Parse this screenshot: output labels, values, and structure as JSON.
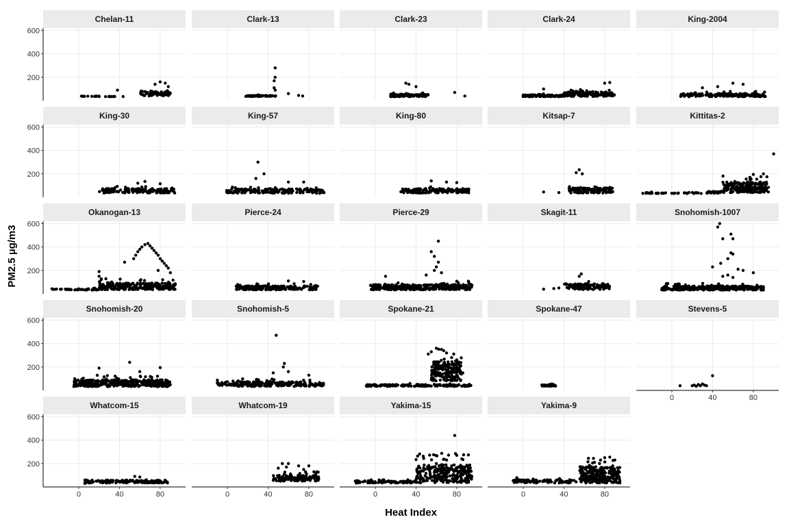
{
  "chart_data": {
    "type": "scatter",
    "layout": "facet-wrap",
    "xlabel": "Heat Index",
    "ylabel": "PM2.5 µg/m3",
    "xlim": [
      -35,
      105
    ],
    "ylim": [
      0,
      620
    ],
    "x_ticks": [
      0,
      40,
      80
    ],
    "y_ticks": [
      200,
      400,
      600
    ],
    "grid": true,
    "point_color": "#000000",
    "strip_color": "#ebebeb",
    "grid_color": "#ebebeb",
    "panels": [
      {
        "label": "Chelan-11",
        "clusters": [
          [
            -1,
            20,
            36,
            42,
            16,
            4
          ],
          [
            20,
            45,
            34,
            40,
            10,
            2
          ],
          [
            60,
            90,
            40,
            110,
            70,
            8
          ]
        ],
        "points": [
          [
            38,
            90
          ],
          [
            80,
            160
          ],
          [
            85,
            150
          ],
          [
            75,
            140
          ],
          [
            88,
            120
          ]
        ]
      },
      {
        "label": "Clark-13",
        "clusters": [
          [
            18,
            48,
            36,
            50,
            60,
            6
          ]
        ],
        "points": [
          [
            47,
            280
          ],
          [
            47,
            200
          ],
          [
            46,
            170
          ],
          [
            46,
            110
          ],
          [
            47,
            90
          ],
          [
            60,
            60
          ],
          [
            70,
            45
          ],
          [
            74,
            40
          ]
        ]
      },
      {
        "label": "Clark-23",
        "clusters": [
          [
            15,
            52,
            34,
            70,
            110,
            9
          ]
        ],
        "points": [
          [
            30,
            150
          ],
          [
            33,
            140
          ],
          [
            40,
            120
          ],
          [
            78,
            70
          ],
          [
            88,
            40
          ]
        ]
      },
      {
        "label": "Clark-24",
        "clusters": [
          [
            -1,
            40,
            34,
            60,
            120,
            6
          ],
          [
            40,
            90,
            36,
            100,
            150,
            9
          ]
        ],
        "points": [
          [
            85,
            155
          ],
          [
            80,
            150
          ],
          [
            20,
            100
          ]
        ]
      },
      {
        "label": "King-2004",
        "clusters": [
          [
            8,
            92,
            34,
            80,
            180,
            9
          ]
        ],
        "points": [
          [
            60,
            150
          ],
          [
            70,
            140
          ],
          [
            45,
            120
          ],
          [
            30,
            110
          ]
        ]
      },
      {
        "label": "King-30",
        "clusters": [
          [
            20,
            95,
            36,
            100,
            150,
            8
          ]
        ],
        "points": [
          [
            65,
            135
          ],
          [
            58,
            120
          ],
          [
            80,
            115
          ]
        ]
      },
      {
        "label": "King-57",
        "clusters": [
          [
            -1,
            95,
            34,
            95,
            180,
            9
          ]
        ],
        "points": [
          [
            30,
            300
          ],
          [
            36,
            200
          ],
          [
            28,
            160
          ],
          [
            60,
            130
          ],
          [
            75,
            130
          ]
        ]
      },
      {
        "label": "King-80",
        "clusters": [
          [
            25,
            92,
            36,
            100,
            140,
            8
          ]
        ],
        "points": [
          [
            55,
            140
          ],
          [
            70,
            130
          ],
          [
            80,
            125
          ]
        ]
      },
      {
        "label": "Kitsap-7",
        "clusters": [
          [
            45,
            88,
            36,
            110,
            120,
            9
          ]
        ],
        "points": [
          [
            55,
            235
          ],
          [
            52,
            210
          ],
          [
            58,
            200
          ],
          [
            20,
            45
          ],
          [
            35,
            40
          ]
        ]
      },
      {
        "label": "Kittitas-2",
        "clusters": [
          [
            -30,
            35,
            32,
            44,
            40,
            4
          ],
          [
            35,
            50,
            34,
            60,
            30,
            3
          ],
          [
            50,
            95,
            40,
            190,
            200,
            12
          ]
        ],
        "points": [
          [
            100,
            370
          ],
          [
            90,
            200
          ],
          [
            80,
            195
          ],
          [
            -25,
            40
          ],
          [
            -20,
            45
          ]
        ]
      },
      {
        "label": "Okanogan-13",
        "clusters": [
          [
            -28,
            20,
            32,
            50,
            40,
            4
          ],
          [
            20,
            95,
            36,
            130,
            260,
            14
          ]
        ],
        "points": [
          [
            65,
            420
          ],
          [
            68,
            430
          ],
          [
            70,
            410
          ],
          [
            62,
            400
          ],
          [
            72,
            390
          ],
          [
            74,
            370
          ],
          [
            76,
            350
          ],
          [
            78,
            330
          ],
          [
            80,
            300
          ],
          [
            82,
            280
          ],
          [
            84,
            260
          ],
          [
            86,
            240
          ],
          [
            60,
            380
          ],
          [
            58,
            360
          ],
          [
            56,
            330
          ],
          [
            54,
            300
          ],
          [
            45,
            270
          ],
          [
            20,
            190
          ],
          [
            20,
            150
          ],
          [
            22,
            120
          ],
          [
            88,
            220
          ],
          [
            78,
            200
          ],
          [
            90,
            180
          ]
        ]
      },
      {
        "label": "Pierce-24",
        "clusters": [
          [
            8,
            90,
            34,
            90,
            180,
            9
          ]
        ],
        "points": [
          [
            30,
            80
          ],
          [
            60,
            110
          ],
          [
            75,
            105
          ]
        ]
      },
      {
        "label": "Pierce-29",
        "clusters": [
          [
            -5,
            95,
            34,
            110,
            320,
            11
          ]
        ],
        "points": [
          [
            62,
            450
          ],
          [
            55,
            360
          ],
          [
            58,
            320
          ],
          [
            62,
            270
          ],
          [
            60,
            230
          ],
          [
            58,
            200
          ],
          [
            65,
            180
          ],
          [
            50,
            160
          ],
          [
            10,
            150
          ]
        ]
      },
      {
        "label": "Skagit-11",
        "clusters": [
          [
            40,
            85,
            36,
            120,
            110,
            9
          ]
        ],
        "points": [
          [
            57,
            170
          ],
          [
            55,
            150
          ],
          [
            20,
            40
          ],
          [
            30,
            45
          ],
          [
            35,
            50
          ]
        ]
      },
      {
        "label": "Snohomish-1007",
        "clusters": [
          [
            -10,
            90,
            32,
            90,
            300,
            11
          ]
        ],
        "points": [
          [
            47,
            600
          ],
          [
            45,
            570
          ],
          [
            58,
            510
          ],
          [
            50,
            470
          ],
          [
            60,
            470
          ],
          [
            58,
            350
          ],
          [
            60,
            340
          ],
          [
            55,
            300
          ],
          [
            48,
            260
          ],
          [
            40,
            230
          ],
          [
            65,
            210
          ],
          [
            70,
            200
          ],
          [
            80,
            180
          ],
          [
            55,
            160
          ],
          [
            50,
            150
          ],
          [
            60,
            140
          ]
        ]
      },
      {
        "label": "Snohomish-20",
        "clusters": [
          [
            -5,
            90,
            32,
            130,
            350,
            11
          ]
        ],
        "points": [
          [
            50,
            240
          ],
          [
            20,
            190
          ],
          [
            80,
            195
          ],
          [
            60,
            160
          ]
        ]
      },
      {
        "label": "Snohomish-5",
        "clusters": [
          [
            -10,
            95,
            34,
            100,
            250,
            10
          ]
        ],
        "points": [
          [
            48,
            470
          ],
          [
            56,
            230
          ],
          [
            55,
            200
          ],
          [
            45,
            150
          ],
          [
            60,
            160
          ],
          [
            80,
            130
          ]
        ]
      },
      {
        "label": "Spokane-21",
        "clusters": [
          [
            -10,
            95,
            34,
            60,
            160,
            9
          ],
          [
            55,
            85,
            80,
            360,
            180,
            14
          ]
        ],
        "points": [
          [
            60,
            360
          ],
          [
            65,
            350
          ],
          [
            55,
            330
          ],
          [
            70,
            320
          ],
          [
            52,
            310
          ],
          [
            75,
            280
          ],
          [
            80,
            260
          ],
          [
            68,
            240
          ],
          [
            84,
            210
          ],
          [
            72,
            190
          ],
          [
            62,
            180
          ],
          [
            78,
            160
          ],
          [
            86,
            150
          ],
          [
            66,
            140
          ]
        ]
      },
      {
        "label": "Spokane-47",
        "clusters": [
          [
            18,
            32,
            36,
            55,
            40,
            7
          ]
        ],
        "points": [
          [
            28,
            55
          ],
          [
            30,
            50
          ]
        ]
      },
      {
        "label": "Stevens-5",
        "clusters": [],
        "points": [
          [
            8,
            40
          ],
          [
            20,
            40
          ],
          [
            22,
            45
          ],
          [
            24,
            35
          ],
          [
            26,
            50
          ],
          [
            28,
            40
          ],
          [
            30,
            55
          ],
          [
            32,
            45
          ],
          [
            34,
            40
          ],
          [
            40,
            125
          ]
        ]
      },
      {
        "label": "Whatcom-15",
        "clusters": [
          [
            5,
            88,
            34,
            75,
            150,
            8
          ]
        ],
        "points": [
          [
            55,
            90
          ],
          [
            60,
            85
          ],
          [
            6,
            30
          ]
        ]
      },
      {
        "label": "Whatcom-19",
        "clusters": [
          [
            45,
            90,
            50,
            130,
            140,
            11
          ]
        ],
        "points": [
          [
            54,
            200
          ],
          [
            60,
            200
          ],
          [
            70,
            180
          ],
          [
            80,
            180
          ],
          [
            58,
            170
          ],
          [
            50,
            160
          ],
          [
            75,
            150
          ],
          [
            85,
            130
          ]
        ]
      },
      {
        "label": "Yakima-15",
        "clusters": [
          [
            -20,
            40,
            34,
            65,
            100,
            7
          ],
          [
            40,
            95,
            36,
            290,
            260,
            13
          ]
        ],
        "points": [
          [
            78,
            440
          ],
          [
            80,
            270
          ],
          [
            85,
            240
          ],
          [
            70,
            230
          ],
          [
            60,
            200
          ],
          [
            65,
            190
          ],
          [
            75,
            180
          ],
          [
            88,
            170
          ],
          [
            55,
            160
          ]
        ]
      },
      {
        "label": "Yakima-9",
        "clusters": [
          [
            -10,
            95,
            34,
            80,
            150,
            9
          ],
          [
            55,
            95,
            60,
            250,
            200,
            13
          ]
        ],
        "points": [
          [
            85,
            255
          ],
          [
            80,
            250
          ],
          [
            90,
            230
          ],
          [
            70,
            210
          ],
          [
            75,
            200
          ],
          [
            65,
            185
          ],
          [
            88,
            180
          ],
          [
            60,
            160
          ]
        ]
      }
    ]
  }
}
